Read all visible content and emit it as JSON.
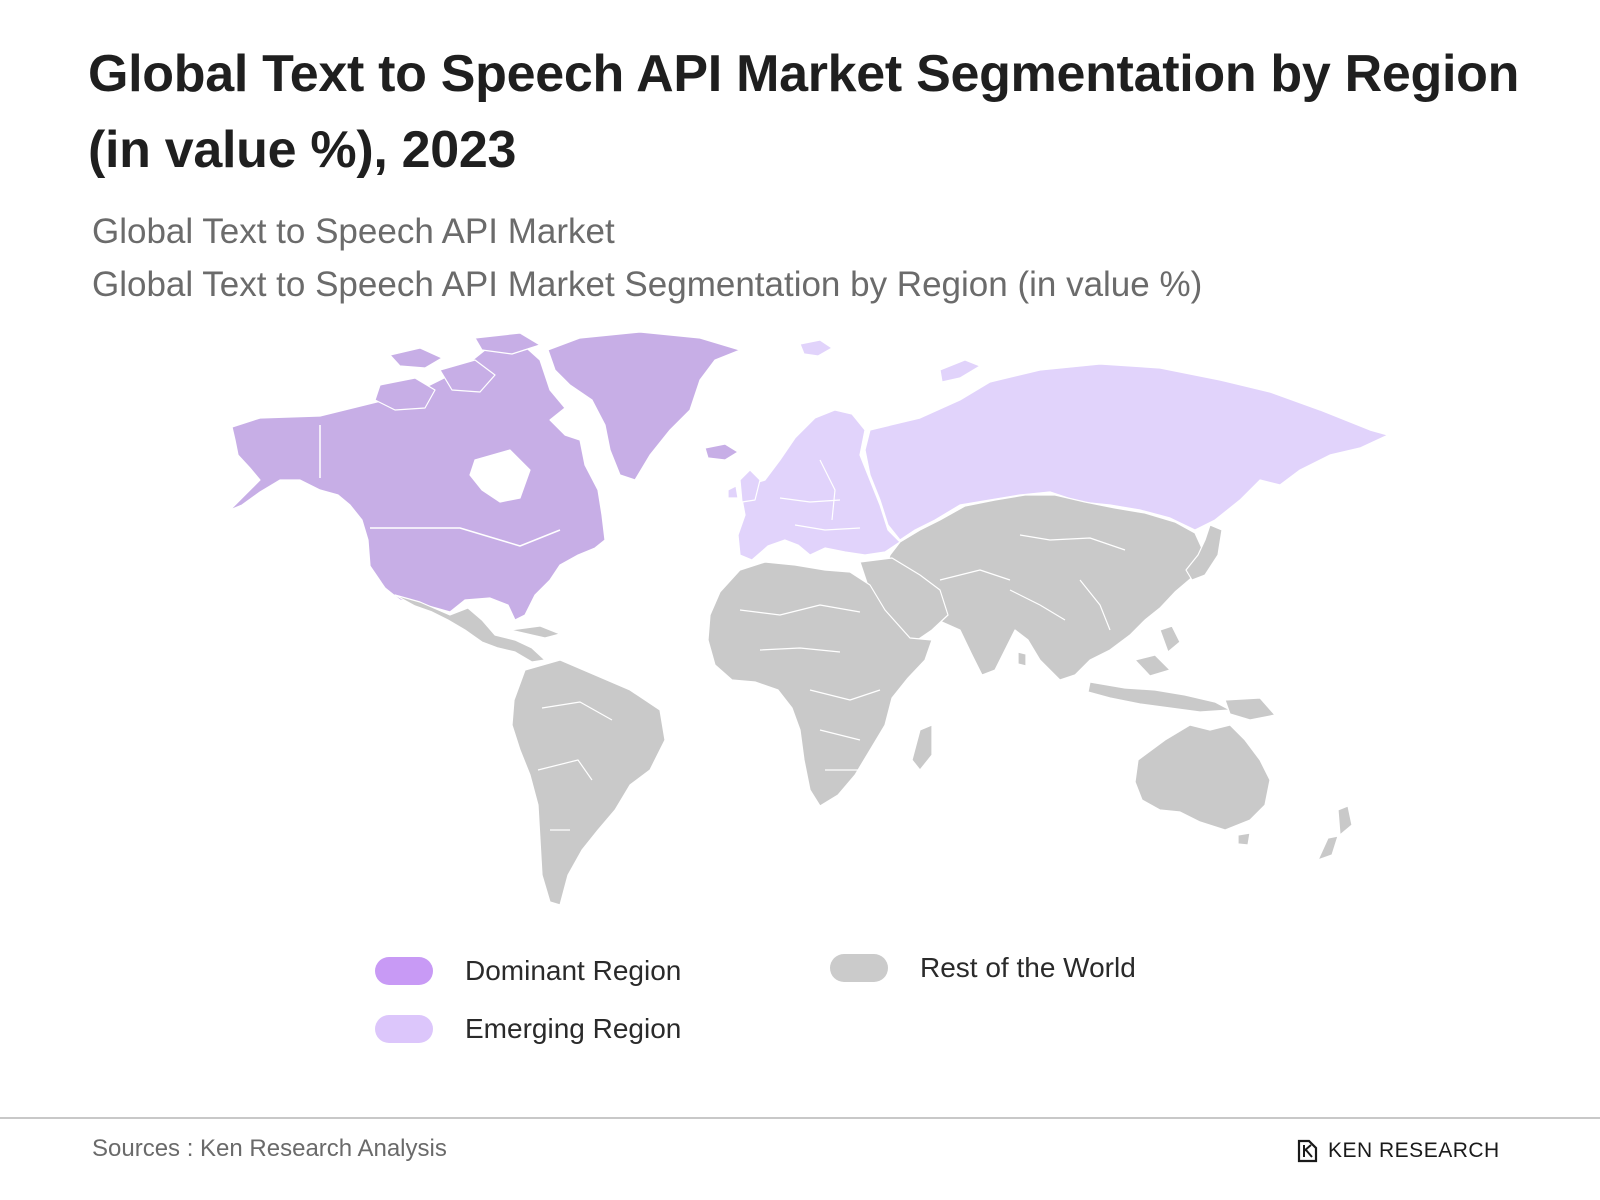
{
  "header": {
    "title": "Global Text to Speech API  Market Segmentation by Region (in value %), 2023",
    "subtitle_1": "Global Text to Speech API  Market",
    "subtitle_2": "Global Text to Speech API  Market Segmentation by Region (in value %)"
  },
  "map": {
    "regions": [
      {
        "name": "North America",
        "category": "Dominant Region"
      },
      {
        "name": "Greenland",
        "category": "Dominant Region"
      },
      {
        "name": "Europe",
        "category": "Emerging Region"
      },
      {
        "name": "Russia",
        "category": "Emerging Region"
      },
      {
        "name": "Latin America",
        "category": "Rest of the World"
      },
      {
        "name": "Africa",
        "category": "Rest of the World"
      },
      {
        "name": "Asia",
        "category": "Rest of the World"
      },
      {
        "name": "Oceania",
        "category": "Rest of the World"
      }
    ]
  },
  "legend": {
    "dominant": {
      "label": "Dominant Region",
      "color": "#c89af5"
    },
    "emerging": {
      "label": "Emerging Region",
      "color": "#dcc6fb"
    },
    "rest": {
      "label": "Rest of the World",
      "color": "#cbcbcb"
    }
  },
  "colors": {
    "dominant_fill": "#c7aee6",
    "emerging_fill": "#e1d3fb",
    "rest_fill": "#c9c9c9"
  },
  "footer": {
    "source": "Sources : Ken Research Analysis",
    "brand": "KEN RESEARCH",
    "brand_icon": "ken-research-logo-icon"
  }
}
